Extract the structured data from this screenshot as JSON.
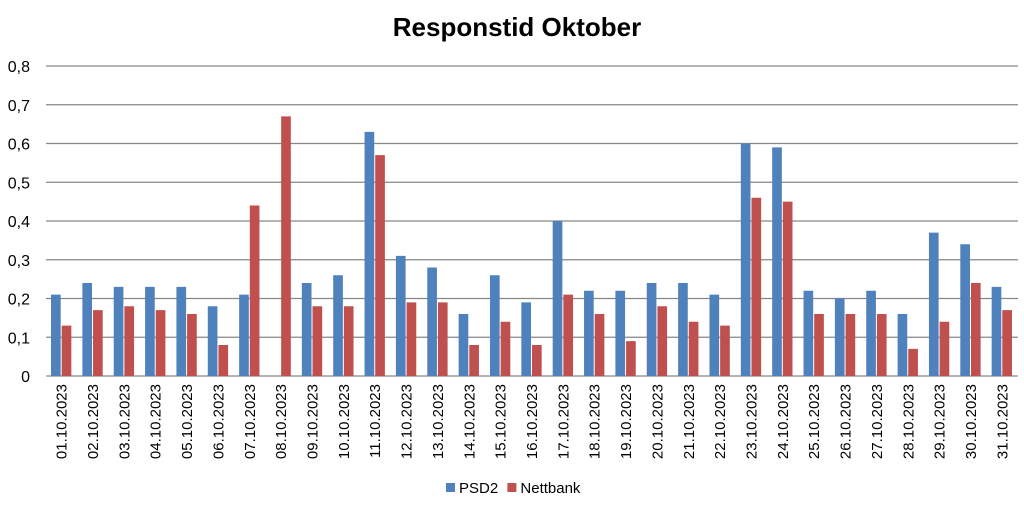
{
  "chart_data": {
    "type": "bar",
    "title": "Responstid Oktober",
    "xlabel": "",
    "ylabel": "",
    "ylim": [
      0,
      0.8
    ],
    "yticks": [
      "0",
      "0,1",
      "0,2",
      "0,3",
      "0,4",
      "0,5",
      "0,6",
      "0,7",
      "0,8"
    ],
    "grid": true,
    "legend_position": "bottom",
    "categories": [
      "01.10.2023",
      "02.10.2023",
      "03.10.2023",
      "04.10.2023",
      "05.10.2023",
      "06.10.2023",
      "07.10.2023",
      "08.10.2023",
      "09.10.2023",
      "10.10.2023",
      "11.10.2023",
      "12.10.2023",
      "13.10.2023",
      "14.10.2023",
      "15.10.2023",
      "16.10.2023",
      "17.10.2023",
      "18.10.2023",
      "19.10.2023",
      "20.10.2023",
      "21.10.2023",
      "22.10.2023",
      "23.10.2023",
      "24.10.2023",
      "25.10.2023",
      "26.10.2023",
      "27.10.2023",
      "28.10.2023",
      "29.10.2023",
      "30.10.2023",
      "31.10.2023"
    ],
    "series": [
      {
        "name": "PSD2",
        "color": "#4F81BD",
        "values": [
          0.21,
          0.24,
          0.23,
          0.23,
          0.23,
          0.18,
          0.21,
          0,
          0.24,
          0.26,
          0.63,
          0.31,
          0.28,
          0.16,
          0.26,
          0.19,
          0.4,
          0.22,
          0.22,
          0.24,
          0.24,
          0.21,
          0.6,
          0.59,
          0.22,
          0.2,
          0.22,
          0.16,
          0.37,
          0.34,
          0.23
        ]
      },
      {
        "name": "Nettbank",
        "color": "#C0504D",
        "values": [
          0.13,
          0.17,
          0.18,
          0.17,
          0.16,
          0.08,
          0.44,
          0.67,
          0.18,
          0.18,
          0.57,
          0.19,
          0.19,
          0.08,
          0.14,
          0.08,
          0.21,
          0.16,
          0.09,
          0.18,
          0.14,
          0.13,
          0.46,
          0.45,
          0.16,
          0.16,
          0.16,
          0.07,
          0.14,
          0.24,
          0.17
        ]
      }
    ]
  }
}
